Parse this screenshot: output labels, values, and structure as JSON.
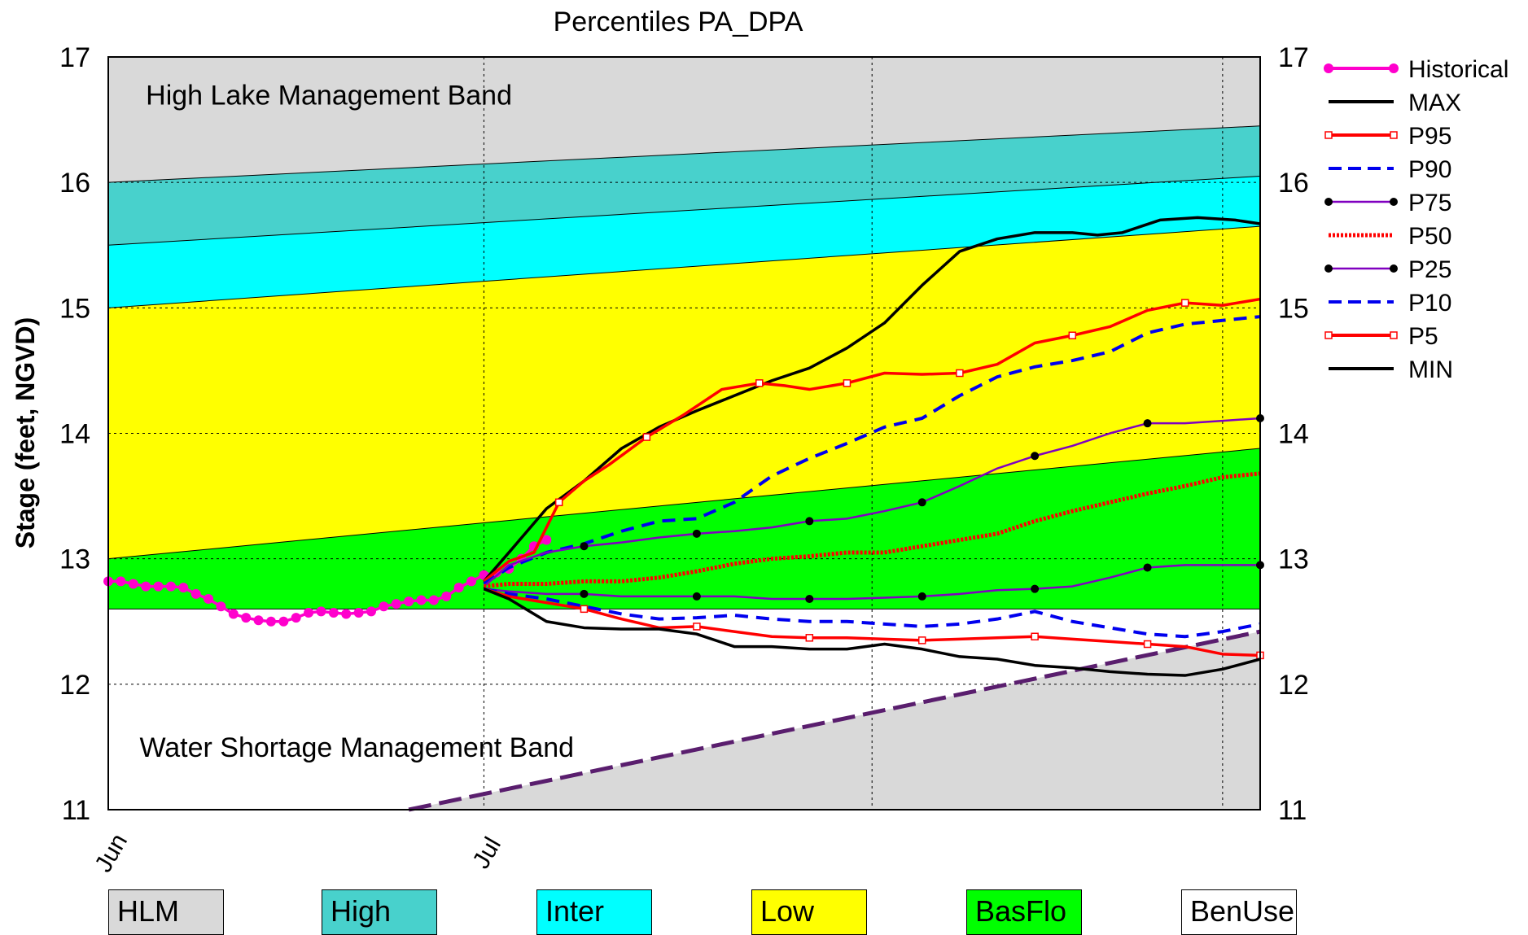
{
  "chart_data": {
    "type": "line",
    "title": "Percentiles PA_DPA",
    "ylabel": "Stage (feet, NGVD)",
    "xlabel": "",
    "ylim": [
      11,
      17
    ],
    "yticks": [
      11,
      12,
      13,
      14,
      15,
      16,
      17
    ],
    "x_units": "days from Jun 1",
    "xlim": [
      0,
      92
    ],
    "x_tick_labels": [
      {
        "day": 0,
        "label": "Jun"
      },
      {
        "day": 30,
        "label": "Jul"
      }
    ],
    "grid": true,
    "legend_position": "right",
    "bands": [
      {
        "name": "HLM",
        "color": "#d9d9d9"
      },
      {
        "name": "High",
        "color": "#48d1cc"
      },
      {
        "name": "Inter",
        "color": "#00ffff"
      },
      {
        "name": "Low",
        "color": "#ffff00"
      },
      {
        "name": "BasFlo",
        "color": "#00ff00"
      },
      {
        "name": "BenUse",
        "color": "#ffffff"
      }
    ],
    "band_boundaries": {
      "high_lower": [
        [
          0,
          16.0
        ],
        [
          92,
          16.45
        ]
      ],
      "inter_upper": [
        [
          0,
          15.5
        ],
        [
          92,
          16.05
        ]
      ],
      "inter_lower": [
        [
          0,
          15.0
        ],
        [
          92,
          15.65
        ]
      ],
      "low_lower": [
        [
          0,
          13.0
        ],
        [
          92,
          13.88
        ]
      ],
      "basflo_lower": [
        [
          0,
          12.6
        ],
        [
          92,
          12.6
        ]
      ],
      "wsm_line": [
        [
          24,
          11.0
        ],
        [
          92,
          12.42
        ]
      ]
    },
    "annotations": [
      {
        "text": "High Lake Management Band",
        "x": 3,
        "y": 16.7
      },
      {
        "text": "Water Shortage Management Band",
        "x": 2.5,
        "y": 11.5
      }
    ],
    "series": [
      {
        "name": "Historical",
        "color": "#ff00cc",
        "style": "dots-solid",
        "x": [
          0,
          1,
          2,
          3,
          4,
          5,
          6,
          7,
          8,
          9,
          10,
          11,
          12,
          13,
          14,
          15,
          16,
          17,
          18,
          19,
          20,
          21,
          22,
          23,
          24,
          25,
          26,
          27,
          28,
          29,
          30,
          31,
          32,
          33,
          34,
          35
        ],
        "y": [
          12.82,
          12.82,
          12.8,
          12.78,
          12.78,
          12.78,
          12.77,
          12.72,
          12.68,
          12.62,
          12.56,
          12.53,
          12.51,
          12.5,
          12.5,
          12.53,
          12.57,
          12.58,
          12.57,
          12.56,
          12.57,
          12.58,
          12.62,
          12.64,
          12.66,
          12.67,
          12.67,
          12.7,
          12.77,
          12.82,
          12.87,
          12.89,
          12.92,
          13.0,
          13.1,
          13.15
        ]
      },
      {
        "name": "MAX",
        "color": "#000000",
        "style": "solid",
        "x": [
          30,
          32,
          35,
          38,
          41,
          44,
          47,
          50,
          53,
          56,
          59,
          62,
          65,
          68,
          71,
          74,
          77,
          79,
          81,
          84,
          87,
          90,
          92
        ],
        "y": [
          12.82,
          13.05,
          13.4,
          13.62,
          13.88,
          14.05,
          14.18,
          14.3,
          14.42,
          14.52,
          14.68,
          14.88,
          15.18,
          15.45,
          15.55,
          15.6,
          15.6,
          15.58,
          15.6,
          15.7,
          15.72,
          15.7,
          15.67
        ]
      },
      {
        "name": "P95",
        "color": "#ff0000",
        "style": "solid-squares",
        "x": [
          30,
          32,
          34,
          36,
          38,
          40,
          43,
          46,
          49,
          52,
          54,
          56,
          59,
          62,
          65,
          68,
          71,
          74,
          77,
          80,
          83,
          86,
          89,
          92
        ],
        "y": [
          12.82,
          12.98,
          13.05,
          13.45,
          13.62,
          13.75,
          13.97,
          14.15,
          14.35,
          14.4,
          14.38,
          14.35,
          14.4,
          14.48,
          14.47,
          14.48,
          14.55,
          14.72,
          14.78,
          14.85,
          14.98,
          15.04,
          15.02,
          15.07
        ]
      },
      {
        "name": "P90",
        "color": "#0000ee",
        "style": "dashed",
        "x": [
          30,
          32,
          35,
          38,
          41,
          44,
          47,
          50,
          53,
          56,
          59,
          62,
          65,
          68,
          71,
          74,
          77,
          80,
          83,
          86,
          89,
          92
        ],
        "y": [
          12.8,
          12.93,
          13.05,
          13.12,
          13.22,
          13.3,
          13.32,
          13.45,
          13.66,
          13.8,
          13.92,
          14.05,
          14.12,
          14.3,
          14.45,
          14.53,
          14.58,
          14.65,
          14.8,
          14.87,
          14.9,
          14.93
        ]
      },
      {
        "name": "P75",
        "color": "#8000c0",
        "style": "solid-dots",
        "x": [
          30,
          32,
          35,
          38,
          41,
          44,
          47,
          50,
          53,
          56,
          59,
          62,
          65,
          68,
          71,
          74,
          77,
          80,
          83,
          86,
          89,
          92
        ],
        "y": [
          12.78,
          12.95,
          13.05,
          13.1,
          13.13,
          13.17,
          13.2,
          13.22,
          13.25,
          13.3,
          13.32,
          13.38,
          13.45,
          13.58,
          13.72,
          13.82,
          13.9,
          14.0,
          14.08,
          14.08,
          14.1,
          14.12
        ]
      },
      {
        "name": "P50",
        "color": "#ff0000",
        "style": "dotted-thick",
        "x": [
          30,
          32,
          35,
          38,
          41,
          44,
          47,
          50,
          53,
          56,
          59,
          62,
          65,
          68,
          71,
          74,
          77,
          80,
          83,
          86,
          89,
          92
        ],
        "y": [
          12.78,
          12.8,
          12.8,
          12.82,
          12.82,
          12.85,
          12.9,
          12.96,
          13.0,
          13.02,
          13.05,
          13.05,
          13.1,
          13.15,
          13.2,
          13.3,
          13.38,
          13.45,
          13.52,
          13.58,
          13.65,
          13.68
        ]
      },
      {
        "name": "P25",
        "color": "#8000c0",
        "style": "solid-dots",
        "x": [
          30,
          32,
          35,
          38,
          41,
          44,
          47,
          50,
          53,
          56,
          59,
          62,
          65,
          68,
          71,
          74,
          77,
          80,
          83,
          86,
          89,
          92
        ],
        "y": [
          12.76,
          12.74,
          12.72,
          12.72,
          12.7,
          12.7,
          12.7,
          12.7,
          12.68,
          12.68,
          12.68,
          12.69,
          12.7,
          12.72,
          12.75,
          12.76,
          12.78,
          12.85,
          12.93,
          12.95,
          12.95,
          12.95
        ]
      },
      {
        "name": "P10",
        "color": "#0000ee",
        "style": "dashed",
        "x": [
          30,
          32,
          35,
          38,
          41,
          44,
          47,
          50,
          53,
          56,
          59,
          62,
          65,
          68,
          71,
          74,
          77,
          80,
          83,
          86,
          89,
          92
        ],
        "y": [
          12.76,
          12.72,
          12.68,
          12.62,
          12.56,
          12.52,
          12.53,
          12.55,
          12.52,
          12.5,
          12.5,
          12.48,
          12.46,
          12.48,
          12.52,
          12.58,
          12.5,
          12.45,
          12.4,
          12.38,
          12.42,
          12.48
        ]
      },
      {
        "name": "P5",
        "color": "#ff0000",
        "style": "solid-squares",
        "x": [
          30,
          32,
          35,
          38,
          41,
          44,
          47,
          50,
          53,
          56,
          59,
          62,
          65,
          68,
          71,
          74,
          77,
          80,
          83,
          86,
          89,
          92
        ],
        "y": [
          12.76,
          12.7,
          12.65,
          12.6,
          12.52,
          12.45,
          12.46,
          12.42,
          12.38,
          12.37,
          12.37,
          12.36,
          12.35,
          12.36,
          12.37,
          12.38,
          12.36,
          12.34,
          12.32,
          12.3,
          12.24,
          12.23
        ]
      },
      {
        "name": "MIN",
        "color": "#000000",
        "style": "solid",
        "x": [
          30,
          32,
          35,
          38,
          41,
          44,
          47,
          50,
          53,
          56,
          59,
          62,
          65,
          68,
          71,
          74,
          77,
          80,
          83,
          86,
          89,
          92
        ],
        "y": [
          12.76,
          12.68,
          12.5,
          12.45,
          12.44,
          12.44,
          12.4,
          12.3,
          12.3,
          12.28,
          12.28,
          12.32,
          12.28,
          12.22,
          12.2,
          12.15,
          12.13,
          12.1,
          12.08,
          12.07,
          12.12,
          12.2
        ]
      }
    ]
  }
}
